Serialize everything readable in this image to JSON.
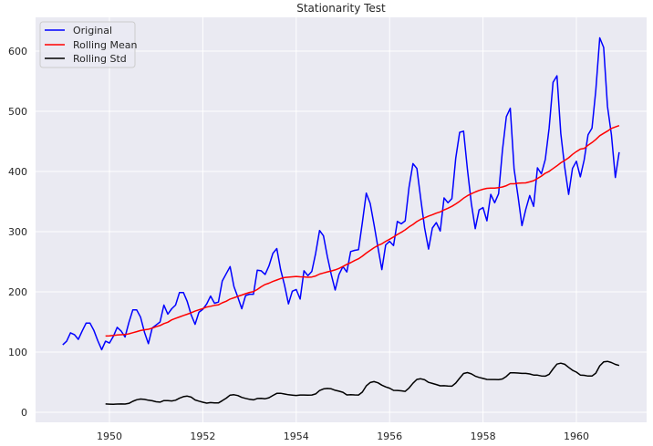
{
  "chart_data": {
    "type": "line",
    "title": "Stationarity Test",
    "xlabel": "",
    "ylabel": "",
    "xlim": [
      1948.7,
      1961.3
    ],
    "ylim": [
      -20,
      650
    ],
    "x_ticks": [
      "1950",
      "1952",
      "1954",
      "1956",
      "1958",
      "1960"
    ],
    "y_ticks": [
      "0",
      "100",
      "200",
      "300",
      "400",
      "500",
      "600"
    ],
    "grid": true,
    "legend_position": "top-left",
    "x_start": "1949-01",
    "x_frequency": "monthly",
    "rolling_window": 12,
    "series": [
      {
        "name": "Original",
        "color": "#0000ff",
        "values": [
          112,
          118,
          132,
          129,
          121,
          135,
          148,
          148,
          136,
          119,
          104,
          118,
          115,
          126,
          141,
          135,
          125,
          149,
          170,
          170,
          158,
          133,
          114,
          140,
          145,
          150,
          178,
          163,
          172,
          178,
          199,
          199,
          184,
          162,
          146,
          166,
          171,
          180,
          193,
          181,
          183,
          218,
          230,
          242,
          209,
          191,
          172,
          194,
          196,
          196,
          236,
          235,
          229,
          243,
          264,
          272,
          237,
          211,
          180,
          201,
          204,
          188,
          235,
          227,
          234,
          264,
          302,
          293,
          259,
          229,
          203,
          229,
          242,
          233,
          267,
          269,
          270,
          315,
          364,
          347,
          312,
          274,
          237,
          278,
          284,
          277,
          317,
          313,
          318,
          374,
          413,
          405,
          355,
          306,
          271,
          306,
          315,
          301,
          356,
          348,
          355,
          422,
          465,
          467,
          404,
          347,
          305,
          336,
          340,
          318,
          362,
          348,
          363,
          435,
          491,
          505,
          404,
          359,
          310,
          337,
          360,
          342,
          406,
          396,
          420,
          472,
          548,
          559,
          463,
          407,
          362,
          405,
          417,
          391,
          419,
          461,
          472,
          535,
          622,
          606,
          508,
          461,
          390,
          432
        ]
      },
      {
        "name": "Rolling Mean",
        "color": "#ff0000",
        "derived": "rolling mean of Original"
      },
      {
        "name": "Rolling Std",
        "color": "#000000",
        "derived": "rolling std of Original"
      }
    ]
  }
}
